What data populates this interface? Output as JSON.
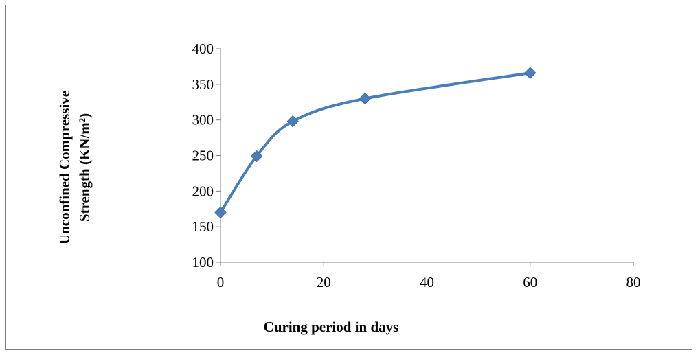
{
  "chart_data": {
    "type": "line",
    "title": "",
    "xlabel": "Curing period in days",
    "ylabel_line1": "Unconfined Compressive",
    "ylabel_line2": "Strength (KN/m²)",
    "xlim": [
      0,
      80
    ],
    "ylim": [
      100,
      400
    ],
    "x_ticks": [
      0,
      20,
      40,
      60,
      80
    ],
    "y_ticks": [
      100,
      150,
      200,
      250,
      300,
      350,
      400
    ],
    "grid": false,
    "legend": "none",
    "series": [
      {
        "x": [
          0,
          7,
          14,
          28,
          60
        ],
        "y": [
          170,
          249,
          298,
          330,
          366
        ],
        "color": "#4a7ebb",
        "marker": "diamond",
        "smooth": true
      }
    ]
  }
}
